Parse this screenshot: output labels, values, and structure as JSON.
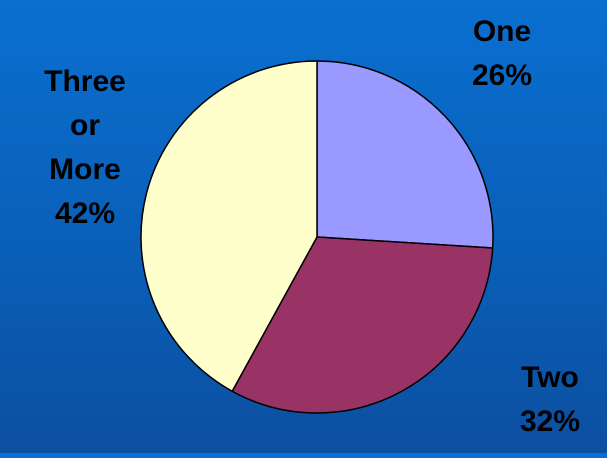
{
  "chart_data": {
    "type": "pie",
    "title": "",
    "categories": [
      "One",
      "Two",
      "Three or More"
    ],
    "values": [
      26,
      32,
      42
    ],
    "unit": "%",
    "start_angle_deg": 90,
    "direction": "clockwise",
    "colors": [
      "#9999ff",
      "#993366",
      "#ffffcc"
    ],
    "labels": [
      {
        "lines": [
          "One",
          "26%"
        ]
      },
      {
        "lines": [
          "Two",
          "32%"
        ]
      },
      {
        "lines": [
          "Three",
          "or",
          "More",
          "42%"
        ]
      }
    ]
  },
  "colors": {
    "background_top": "#0a6fd0",
    "background_bottom": "#0c4fa0",
    "slice_outline": "#000000",
    "label_text": "#000000"
  }
}
